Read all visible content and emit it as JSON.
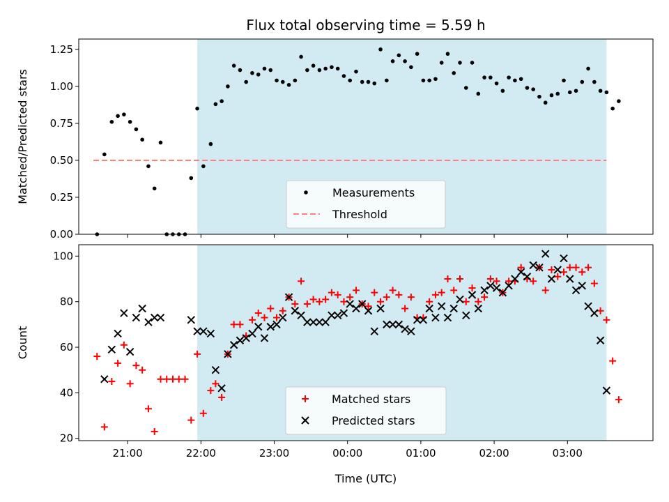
{
  "colors": {
    "shade": "#add8e6",
    "threshold": "#ff7f7f",
    "matched": "#ff0000",
    "predicted": "#000000",
    "measurement": "#000000"
  },
  "chart_data": [
    {
      "type": "scatter",
      "title": "Flux total observing time = 5.59 h",
      "xlabel": "",
      "ylabel": "Matched/Predicted stars",
      "xlim": [
        "20:20",
        "04:10"
      ],
      "ylim": [
        0,
        1.32
      ],
      "yticks": [
        0.0,
        0.25,
        0.5,
        0.75,
        1.0,
        1.25
      ],
      "ytick_labels": [
        "0.00",
        "0.25",
        "0.50",
        "0.75",
        "1.00",
        "1.25"
      ],
      "xticks": [
        "21:00",
        "22:00",
        "23:00",
        "00:00",
        "01:00",
        "02:00",
        "03:00"
      ],
      "shaded_interval": [
        "21:57",
        "03:32"
      ],
      "threshold": {
        "value": 0.5,
        "x": [
          "20:32",
          "03:32"
        ]
      },
      "legend": {
        "position": "lower center",
        "entries": [
          "Measurements",
          "Threshold"
        ]
      },
      "series": [
        {
          "name": "Measurements",
          "points": [
            [
              "20:35",
              0.0
            ],
            [
              "20:41",
              0.54
            ],
            [
              "20:47",
              0.76
            ],
            [
              "20:52",
              0.8
            ],
            [
              "20:57",
              0.81
            ],
            [
              "21:02",
              0.76
            ],
            [
              "21:07",
              0.71
            ],
            [
              "21:12",
              0.64
            ],
            [
              "21:17",
              0.46
            ],
            [
              "21:22",
              0.31
            ],
            [
              "21:27",
              0.62
            ],
            [
              "21:32",
              0.0
            ],
            [
              "21:37",
              0.0
            ],
            [
              "21:42",
              0.0
            ],
            [
              "21:47",
              0.0
            ],
            [
              "21:52",
              0.38
            ],
            [
              "21:57",
              0.85
            ],
            [
              "22:02",
              0.46
            ],
            [
              "22:08",
              0.61
            ],
            [
              "22:12",
              0.88
            ],
            [
              "22:17",
              0.9
            ],
            [
              "22:22",
              1.0
            ],
            [
              "22:27",
              1.14
            ],
            [
              "22:32",
              1.11
            ],
            [
              "22:37",
              1.03
            ],
            [
              "22:42",
              1.09
            ],
            [
              "22:47",
              1.08
            ],
            [
              "22:52",
              1.12
            ],
            [
              "22:57",
              1.11
            ],
            [
              "23:02",
              1.04
            ],
            [
              "23:07",
              1.03
            ],
            [
              "23:12",
              1.01
            ],
            [
              "23:17",
              1.04
            ],
            [
              "23:22",
              1.2
            ],
            [
              "23:27",
              1.11
            ],
            [
              "23:32",
              1.14
            ],
            [
              "23:37",
              1.11
            ],
            [
              "23:42",
              1.12
            ],
            [
              "23:47",
              1.13
            ],
            [
              "23:52",
              1.12
            ],
            [
              "23:57",
              1.07
            ],
            [
              "00:02",
              1.04
            ],
            [
              "00:07",
              1.1
            ],
            [
              "00:12",
              1.03
            ],
            [
              "00:17",
              1.03
            ],
            [
              "00:22",
              1.02
            ],
            [
              "00:27",
              1.25
            ],
            [
              "00:32",
              1.04
            ],
            [
              "00:37",
              1.17
            ],
            [
              "00:42",
              1.21
            ],
            [
              "00:47",
              1.17
            ],
            [
              "00:52",
              1.13
            ],
            [
              "00:57",
              1.22
            ],
            [
              "01:02",
              1.04
            ],
            [
              "01:07",
              1.04
            ],
            [
              "01:12",
              1.05
            ],
            [
              "01:17",
              1.16
            ],
            [
              "01:22",
              1.22
            ],
            [
              "01:27",
              1.09
            ],
            [
              "01:32",
              1.16
            ],
            [
              "01:37",
              0.99
            ],
            [
              "01:42",
              1.16
            ],
            [
              "01:47",
              0.95
            ],
            [
              "01:52",
              1.06
            ],
            [
              "01:57",
              1.06
            ],
            [
              "02:02",
              1.02
            ],
            [
              "02:07",
              0.97
            ],
            [
              "02:12",
              1.06
            ],
            [
              "02:17",
              1.04
            ],
            [
              "02:22",
              1.05
            ],
            [
              "02:27",
              0.99
            ],
            [
              "02:32",
              0.98
            ],
            [
              "02:37",
              0.93
            ],
            [
              "02:42",
              0.89
            ],
            [
              "02:47",
              0.94
            ],
            [
              "02:52",
              0.95
            ],
            [
              "02:57",
              1.04
            ],
            [
              "03:02",
              0.96
            ],
            [
              "03:07",
              0.97
            ],
            [
              "03:12",
              1.03
            ],
            [
              "03:17",
              1.12
            ],
            [
              "03:22",
              1.03
            ],
            [
              "03:27",
              0.97
            ],
            [
              "03:32",
              0.96
            ],
            [
              "03:37",
              0.85
            ],
            [
              "03:42",
              0.9
            ]
          ]
        }
      ]
    },
    {
      "type": "scatter",
      "title": "",
      "xlabel": "Time (UTC)",
      "ylabel": "Count",
      "xlim": [
        "20:20",
        "04:10"
      ],
      "ylim": [
        19,
        105
      ],
      "yticks": [
        20,
        40,
        60,
        80,
        100
      ],
      "ytick_labels": [
        "20",
        "40",
        "60",
        "80",
        "100"
      ],
      "xticks": [
        "21:00",
        "22:00",
        "23:00",
        "00:00",
        "01:00",
        "02:00",
        "03:00"
      ],
      "shaded_interval": [
        "21:57",
        "03:32"
      ],
      "legend": {
        "position": "lower center",
        "entries": [
          "Matched stars",
          "Predicted stars"
        ]
      },
      "series": [
        {
          "name": "Matched stars",
          "marker": "+",
          "points": [
            [
              "20:35",
              56
            ],
            [
              "20:41",
              25
            ],
            [
              "20:47",
              45
            ],
            [
              "20:52",
              53
            ],
            [
              "20:57",
              61
            ],
            [
              "21:02",
              44
            ],
            [
              "21:07",
              52
            ],
            [
              "21:12",
              50
            ],
            [
              "21:17",
              33
            ],
            [
              "21:22",
              23
            ],
            [
              "21:27",
              46
            ],
            [
              "21:32",
              46
            ],
            [
              "21:37",
              46
            ],
            [
              "21:42",
              46
            ],
            [
              "21:47",
              46
            ],
            [
              "21:52",
              28
            ],
            [
              "21:57",
              57
            ],
            [
              "22:02",
              31
            ],
            [
              "22:08",
              41
            ],
            [
              "22:12",
              44
            ],
            [
              "22:17",
              38
            ],
            [
              "22:22",
              57
            ],
            [
              "22:27",
              70
            ],
            [
              "22:32",
              70
            ],
            [
              "22:37",
              65
            ],
            [
              "22:42",
              72
            ],
            [
              "22:47",
              75
            ],
            [
              "22:52",
              73
            ],
            [
              "22:57",
              77
            ],
            [
              "23:02",
              73
            ],
            [
              "23:07",
              76
            ],
            [
              "23:12",
              82
            ],
            [
              "23:17",
              79
            ],
            [
              "23:22",
              89
            ],
            [
              "23:27",
              79
            ],
            [
              "23:32",
              81
            ],
            [
              "23:37",
              80
            ],
            [
              "23:42",
              81
            ],
            [
              "23:47",
              84
            ],
            [
              "23:52",
              83
            ],
            [
              "23:57",
              80
            ],
            [
              "00:02",
              82
            ],
            [
              "00:07",
              85
            ],
            [
              "00:12",
              79
            ],
            [
              "00:17",
              78
            ],
            [
              "00:22",
              84
            ],
            [
              "00:27",
              80
            ],
            [
              "00:32",
              82
            ],
            [
              "00:37",
              85
            ],
            [
              "00:42",
              83
            ],
            [
              "00:47",
              77
            ],
            [
              "00:52",
              82
            ],
            [
              "00:57",
              73
            ],
            [
              "01:02",
              73
            ],
            [
              "01:07",
              80
            ],
            [
              "01:12",
              83
            ],
            [
              "01:17",
              84
            ],
            [
              "01:22",
              90
            ],
            [
              "01:27",
              85
            ],
            [
              "01:32",
              90
            ],
            [
              "01:37",
              80
            ],
            [
              "01:42",
              86
            ],
            [
              "01:47",
              80
            ],
            [
              "01:52",
              82
            ],
            [
              "01:57",
              90
            ],
            [
              "02:02",
              89
            ],
            [
              "02:07",
              84
            ],
            [
              "02:12",
              89
            ],
            [
              "02:17",
              89
            ],
            [
              "02:22",
              95
            ],
            [
              "02:27",
              90
            ],
            [
              "02:32",
              89
            ],
            [
              "02:37",
              95
            ],
            [
              "02:42",
              85
            ],
            [
              "02:47",
              94
            ],
            [
              "02:52",
              91
            ],
            [
              "02:57",
              93
            ],
            [
              "03:02",
              95
            ],
            [
              "03:07",
              95
            ],
            [
              "03:12",
              93
            ],
            [
              "03:17",
              95
            ],
            [
              "03:22",
              88
            ],
            [
              "03:27",
              76
            ],
            [
              "03:32",
              72
            ],
            [
              "03:37",
              54
            ],
            [
              "03:42",
              37
            ]
          ]
        },
        {
          "name": "Predicted stars",
          "marker": "x",
          "points": [
            [
              "20:41",
              46
            ],
            [
              "20:47",
              59
            ],
            [
              "20:52",
              66
            ],
            [
              "20:57",
              75
            ],
            [
              "21:02",
              58
            ],
            [
              "21:07",
              73
            ],
            [
              "21:12",
              77
            ],
            [
              "21:17",
              71
            ],
            [
              "21:22",
              73
            ],
            [
              "21:27",
              73
            ],
            [
              "21:52",
              72
            ],
            [
              "21:57",
              67
            ],
            [
              "22:02",
              67
            ],
            [
              "22:08",
              66
            ],
            [
              "22:12",
              50
            ],
            [
              "22:17",
              42
            ],
            [
              "22:22",
              57
            ],
            [
              "22:27",
              61
            ],
            [
              "22:32",
              63
            ],
            [
              "22:37",
              64
            ],
            [
              "22:42",
              66
            ],
            [
              "22:47",
              69
            ],
            [
              "22:52",
              64
            ],
            [
              "22:57",
              69
            ],
            [
              "23:02",
              70
            ],
            [
              "23:07",
              73
            ],
            [
              "23:12",
              82
            ],
            [
              "23:17",
              76
            ],
            [
              "23:22",
              74
            ],
            [
              "23:27",
              71
            ],
            [
              "23:32",
              71
            ],
            [
              "23:37",
              71
            ],
            [
              "23:42",
              71
            ],
            [
              "23:47",
              74
            ],
            [
              "23:52",
              74
            ],
            [
              "23:57",
              75
            ],
            [
              "00:02",
              79
            ],
            [
              "00:07",
              77
            ],
            [
              "00:12",
              79
            ],
            [
              "00:17",
              76
            ],
            [
              "00:22",
              67
            ],
            [
              "00:27",
              77
            ],
            [
              "00:32",
              70
            ],
            [
              "00:37",
              70
            ],
            [
              "00:42",
              70
            ],
            [
              "00:47",
              68
            ],
            [
              "00:52",
              67
            ],
            [
              "00:57",
              72
            ],
            [
              "01:02",
              72
            ],
            [
              "01:07",
              77
            ],
            [
              "01:12",
              73
            ],
            [
              "01:17",
              78
            ],
            [
              "01:22",
              73
            ],
            [
              "01:27",
              77
            ],
            [
              "01:32",
              81
            ],
            [
              "01:37",
              74
            ],
            [
              "01:42",
              83
            ],
            [
              "01:47",
              77
            ],
            [
              "01:52",
              85
            ],
            [
              "01:57",
              87
            ],
            [
              "02:02",
              86
            ],
            [
              "02:07",
              84
            ],
            [
              "02:12",
              87
            ],
            [
              "02:17",
              90
            ],
            [
              "02:22",
              93
            ],
            [
              "02:27",
              91
            ],
            [
              "02:32",
              96
            ],
            [
              "02:37",
              95
            ],
            [
              "02:42",
              101
            ],
            [
              "02:47",
              90
            ],
            [
              "02:52",
              94
            ],
            [
              "02:57",
              99
            ],
            [
              "03:02",
              90
            ],
            [
              "03:07",
              85
            ],
            [
              "03:12",
              87
            ],
            [
              "03:17",
              78
            ],
            [
              "03:22",
              75
            ],
            [
              "03:27",
              63
            ],
            [
              "03:32",
              41
            ]
          ]
        }
      ]
    }
  ]
}
